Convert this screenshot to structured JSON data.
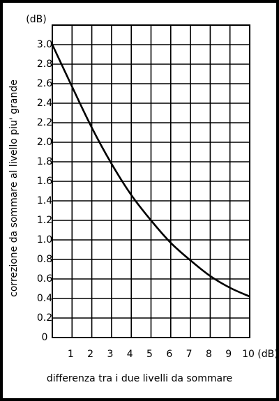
{
  "chart_data": {
    "type": "line",
    "x_label": "differenza tra i due livelli da sommare",
    "y_label": "correzione da sommare al livello piu' grande",
    "x_unit": "(dB)",
    "y_unit": "(dB)",
    "x": [
      0,
      1,
      2,
      3,
      4,
      5,
      6,
      7,
      8,
      9,
      10
    ],
    "values": [
      3.0,
      2.57,
      2.15,
      1.78,
      1.46,
      1.2,
      0.97,
      0.79,
      0.63,
      0.51,
      0.42
    ],
    "color": "#000000",
    "xlim": [
      0,
      10
    ],
    "xticks": [
      1,
      2,
      3,
      4,
      5,
      6,
      7,
      8,
      9,
      10
    ],
    "ylim": [
      0,
      3.2
    ],
    "yticks": [
      0,
      0.2,
      0.4,
      0.6,
      0.8,
      {
        "value": 1,
        "label": "1.0"
      },
      1.2,
      1.4,
      1.6,
      1.8,
      {
        "value": 2,
        "label": "2.0"
      },
      2.2,
      2.4,
      2.6,
      2.8,
      {
        "value": 3,
        "label": "3.0"
      }
    ],
    "grid": true
  }
}
